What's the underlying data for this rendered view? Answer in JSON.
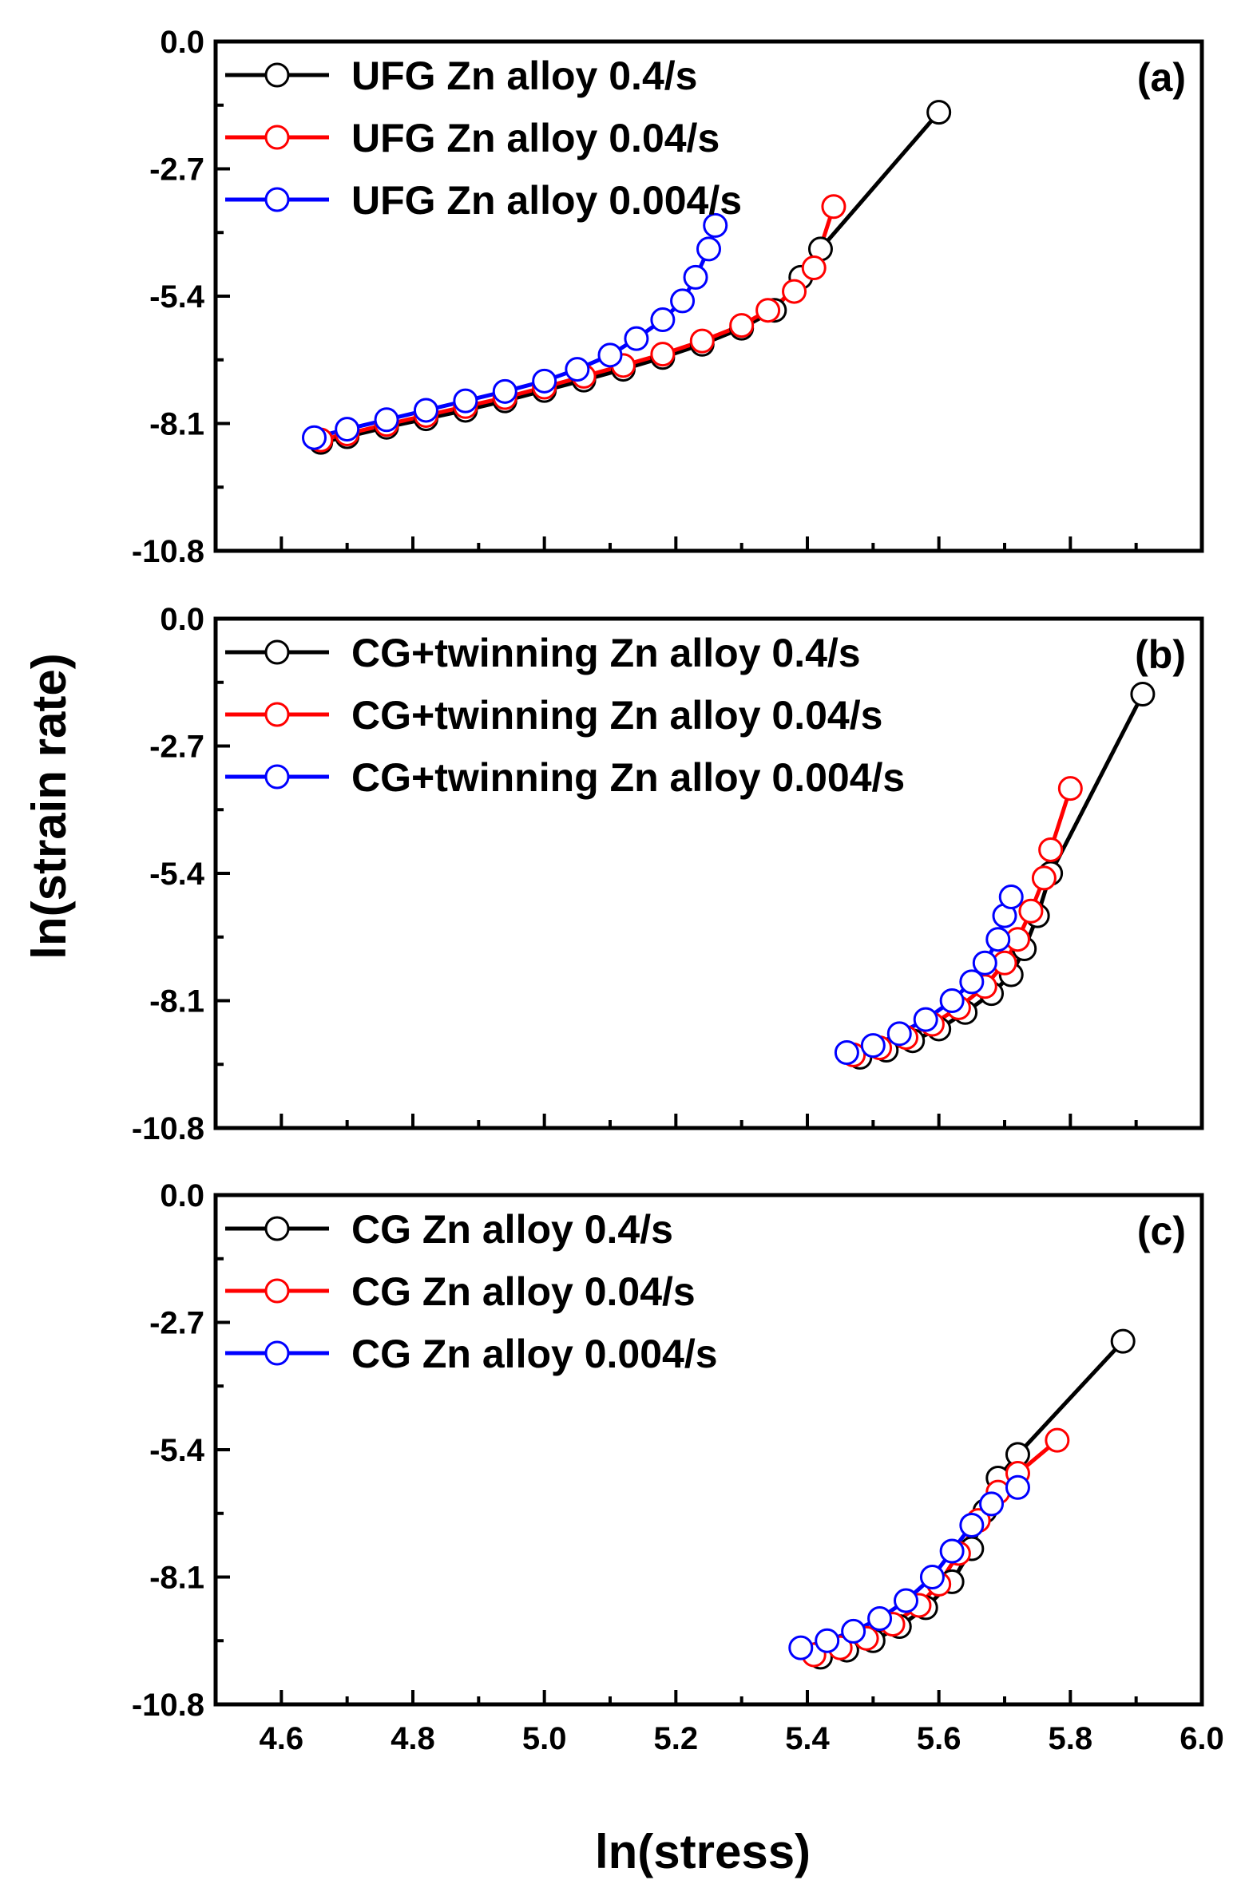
{
  "chart_data": {
    "type": "line",
    "xlabel": "ln(stress)",
    "ylabel": "ln(strain rate)",
    "xlim": [
      4.5,
      6.0
    ],
    "x_ticks": [
      4.6,
      4.8,
      5.0,
      5.2,
      5.4,
      5.6,
      5.8,
      6.0
    ],
    "x_tick_labels": [
      "4.6",
      "4.8",
      "5.0",
      "5.2",
      "5.4",
      "5.6",
      "5.8",
      "6.0"
    ],
    "ylim": [
      -10.8,
      0.0
    ],
    "y_ticks": [
      0.0,
      -2.7,
      -5.4,
      -8.1,
      -10.8
    ],
    "y_tick_labels": [
      "0.0",
      "-2.7",
      "-5.4",
      "-8.1",
      "-10.8"
    ],
    "colors": {
      "0.4/s": "#000000",
      "0.04/s": "#ff0000",
      "0.004/s": "#0000ff"
    },
    "panels": [
      {
        "label": "(a)",
        "legend_position": "top-left",
        "series": [
          {
            "name": "UFG Zn alloy 0.4/s",
            "color": "#000000",
            "points": [
              [
                4.66,
                -8.5
              ],
              [
                4.7,
                -8.38
              ],
              [
                4.76,
                -8.18
              ],
              [
                4.82,
                -8.0
              ],
              [
                4.88,
                -7.82
              ],
              [
                4.94,
                -7.62
              ],
              [
                5.0,
                -7.4
              ],
              [
                5.06,
                -7.18
              ],
              [
                5.12,
                -6.95
              ],
              [
                5.18,
                -6.7
              ],
              [
                5.24,
                -6.42
              ],
              [
                5.3,
                -6.08
              ],
              [
                5.35,
                -5.7
              ],
              [
                5.39,
                -5.0
              ],
              [
                5.42,
                -4.4
              ],
              [
                5.6,
                -1.5
              ]
            ]
          },
          {
            "name": "UFG Zn alloy 0.04/s",
            "color": "#ff0000",
            "points": [
              [
                4.66,
                -8.45
              ],
              [
                4.7,
                -8.32
              ],
              [
                4.76,
                -8.12
              ],
              [
                4.82,
                -7.93
              ],
              [
                4.88,
                -7.74
              ],
              [
                4.94,
                -7.55
              ],
              [
                5.0,
                -7.33
              ],
              [
                5.06,
                -7.1
              ],
              [
                5.12,
                -6.87
              ],
              [
                5.18,
                -6.63
              ],
              [
                5.24,
                -6.35
              ],
              [
                5.3,
                -6.02
              ],
              [
                5.34,
                -5.7
              ],
              [
                5.38,
                -5.3
              ],
              [
                5.41,
                -4.8
              ],
              [
                5.44,
                -3.5
              ]
            ]
          },
          {
            "name": "UFG Zn alloy 0.004/s",
            "color": "#0000ff",
            "points": [
              [
                4.65,
                -8.4
              ],
              [
                4.7,
                -8.22
              ],
              [
                4.76,
                -8.02
              ],
              [
                4.82,
                -7.82
              ],
              [
                4.88,
                -7.62
              ],
              [
                4.94,
                -7.42
              ],
              [
                5.0,
                -7.2
              ],
              [
                5.05,
                -6.95
              ],
              [
                5.1,
                -6.65
              ],
              [
                5.14,
                -6.3
              ],
              [
                5.18,
                -5.9
              ],
              [
                5.21,
                -5.5
              ],
              [
                5.23,
                -5.0
              ],
              [
                5.25,
                -4.4
              ],
              [
                5.26,
                -3.9
              ]
            ]
          }
        ]
      },
      {
        "label": "(b)",
        "legend_position": "top-left",
        "series": [
          {
            "name": "CG+twinning Zn alloy 0.4/s",
            "color": "#000000",
            "points": [
              [
                5.48,
                -9.3
              ],
              [
                5.52,
                -9.15
              ],
              [
                5.56,
                -8.95
              ],
              [
                5.6,
                -8.7
              ],
              [
                5.64,
                -8.35
              ],
              [
                5.68,
                -7.95
              ],
              [
                5.71,
                -7.55
              ],
              [
                5.73,
                -7.0
              ],
              [
                5.75,
                -6.3
              ],
              [
                5.77,
                -5.4
              ],
              [
                5.91,
                -1.6
              ]
            ]
          },
          {
            "name": "CG+twinning Zn alloy 0.04/s",
            "color": "#ff0000",
            "points": [
              [
                5.47,
                -9.25
              ],
              [
                5.51,
                -9.1
              ],
              [
                5.55,
                -8.88
              ],
              [
                5.59,
                -8.6
              ],
              [
                5.63,
                -8.25
              ],
              [
                5.67,
                -7.8
              ],
              [
                5.7,
                -7.3
              ],
              [
                5.72,
                -6.8
              ],
              [
                5.74,
                -6.2
              ],
              [
                5.76,
                -5.5
              ],
              [
                5.77,
                -4.9
              ],
              [
                5.8,
                -3.6
              ]
            ]
          },
          {
            "name": "CG+twinning Zn alloy 0.004/s",
            "color": "#0000ff",
            "points": [
              [
                5.46,
                -9.2
              ],
              [
                5.5,
                -9.05
              ],
              [
                5.54,
                -8.8
              ],
              [
                5.58,
                -8.5
              ],
              [
                5.62,
                -8.1
              ],
              [
                5.65,
                -7.7
              ],
              [
                5.67,
                -7.3
              ],
              [
                5.69,
                -6.8
              ],
              [
                5.7,
                -6.3
              ],
              [
                5.71,
                -5.9
              ]
            ]
          }
        ]
      },
      {
        "label": "(c)",
        "legend_position": "top-left",
        "series": [
          {
            "name": "CG Zn alloy 0.4/s",
            "color": "#000000",
            "points": [
              [
                5.42,
                -9.8
              ],
              [
                5.46,
                -9.65
              ],
              [
                5.5,
                -9.45
              ],
              [
                5.54,
                -9.15
              ],
              [
                5.58,
                -8.75
              ],
              [
                5.62,
                -8.2
              ],
              [
                5.65,
                -7.5
              ],
              [
                5.67,
                -6.7
              ],
              [
                5.69,
                -6.0
              ],
              [
                5.72,
                -5.5
              ],
              [
                5.88,
                -3.1
              ]
            ]
          },
          {
            "name": "CG Zn alloy 0.04/s",
            "color": "#ff0000",
            "points": [
              [
                5.41,
                -9.75
              ],
              [
                5.45,
                -9.6
              ],
              [
                5.49,
                -9.4
              ],
              [
                5.53,
                -9.1
              ],
              [
                5.57,
                -8.7
              ],
              [
                5.6,
                -8.25
              ],
              [
                5.63,
                -7.6
              ],
              [
                5.66,
                -6.9
              ],
              [
                5.69,
                -6.3
              ],
              [
                5.72,
                -5.9
              ],
              [
                5.78,
                -5.2
              ]
            ]
          },
          {
            "name": "CG Zn alloy 0.004/s",
            "color": "#0000ff",
            "points": [
              [
                5.39,
                -9.6
              ],
              [
                5.43,
                -9.45
              ],
              [
                5.47,
                -9.25
              ],
              [
                5.51,
                -8.98
              ],
              [
                5.55,
                -8.6
              ],
              [
                5.59,
                -8.1
              ],
              [
                5.62,
                -7.55
              ],
              [
                5.65,
                -7.0
              ],
              [
                5.68,
                -6.55
              ],
              [
                5.72,
                -6.2
              ]
            ]
          }
        ]
      }
    ]
  }
}
